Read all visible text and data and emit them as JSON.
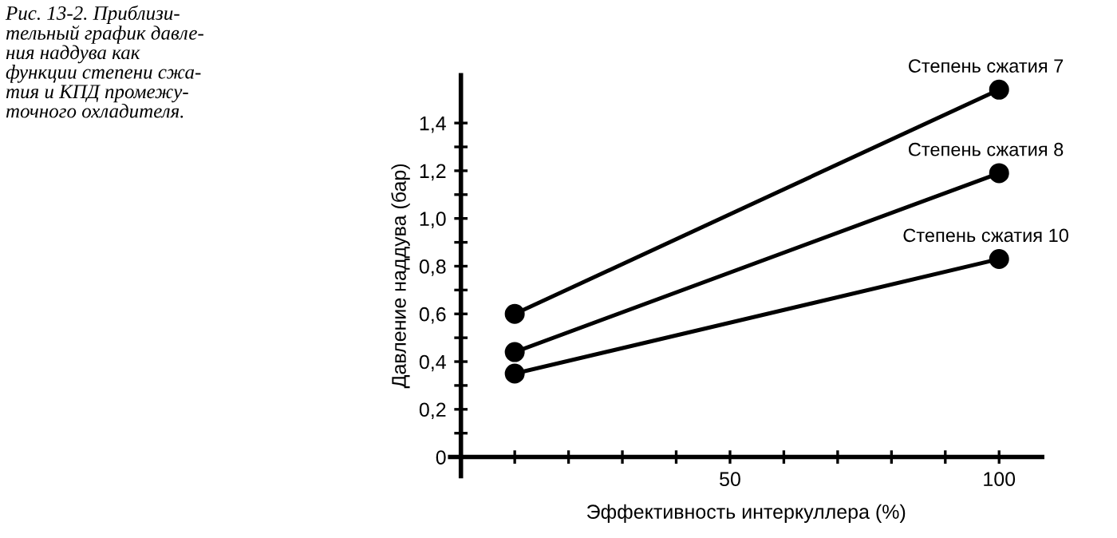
{
  "chart_data": {
    "type": "line",
    "xlabel": "Эффективность интеркуллера (%)",
    "ylabel": "Давление наддува (бар)",
    "annotations": [
      "Рис. 13-2. Приблизи-\nтельный график давле-\nния наддува как\nфункции степени сжа-\nтия и КПД промежу-\nточного охладителя."
    ],
    "x": [
      10,
      100
    ],
    "series": [
      {
        "name": "Степень сжатия 7",
        "color": "#000000",
        "values": [
          0.6,
          1.54
        ]
      },
      {
        "name": "Степень сжатия 8",
        "color": "#000000",
        "values": [
          0.44,
          1.19
        ]
      },
      {
        "name": "Степень сжатия 10",
        "color": "#000000",
        "values": [
          0.35,
          0.83
        ]
      }
    ],
    "xlim": [
      -2,
      108
    ],
    "ylim": [
      -0.08,
      1.6
    ],
    "xticks": [
      {
        "value": 10,
        "label": null
      },
      {
        "value": 20,
        "label": null
      },
      {
        "value": 30,
        "label": null
      },
      {
        "value": 40,
        "label": null
      },
      50,
      {
        "value": 60,
        "label": null
      },
      {
        "value": 70,
        "label": null
      },
      {
        "value": 80,
        "label": null
      },
      {
        "value": 90,
        "label": null
      },
      100
    ],
    "yticks": [
      0,
      {
        "value": 0.1,
        "label": null
      },
      {
        "value": 0.2,
        "label": "0,2"
      },
      {
        "value": 0.3,
        "label": null
      },
      {
        "value": 0.4,
        "label": "0,4"
      },
      {
        "value": 0.5,
        "label": null
      },
      {
        "value": 0.6,
        "label": "0,6"
      },
      {
        "value": 0.7,
        "label": null
      },
      {
        "value": 0.8,
        "label": "0,8"
      },
      {
        "value": 0.9,
        "label": null
      },
      {
        "value": 1.0,
        "label": "1,0"
      },
      {
        "value": 1.1,
        "label": null
      },
      {
        "value": 1.2,
        "label": "1,2"
      },
      {
        "value": 1.3,
        "label": null
      },
      {
        "value": 1.4,
        "label": "1,4"
      }
    ],
    "grid": false,
    "legend": false,
    "marker": "circle",
    "line_style": "solid"
  }
}
